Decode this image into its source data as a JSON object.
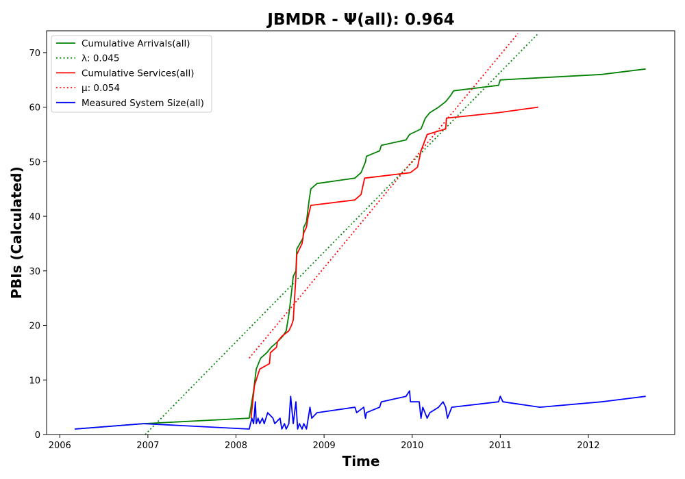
{
  "chart_data": {
    "type": "line",
    "title": "JBMDR -  Ψ(all): 0.964",
    "xlabel": "Time",
    "ylabel": "PBIs (Calculated)",
    "xlim": [
      2005.85,
      2012.98
    ],
    "ylim": [
      0,
      74
    ],
    "x_ticks": [
      2006,
      2007,
      2008,
      2009,
      2010,
      2011,
      2012
    ],
    "y_ticks": [
      0,
      10,
      20,
      30,
      40,
      50,
      60,
      70
    ],
    "x_tick_labels": [
      "2006",
      "2007",
      "2008",
      "2009",
      "2010",
      "2011",
      "2012"
    ],
    "y_tick_labels": [
      "0",
      "10",
      "20",
      "30",
      "40",
      "50",
      "60",
      "70"
    ],
    "grid": false,
    "legend_position": "upper-left",
    "series": [
      {
        "name": "Cumulative Arrivals(all)",
        "color": "#008000",
        "style": "solid",
        "points": [
          [
            2006.17,
            1
          ],
          [
            2006.95,
            2
          ],
          [
            2008.15,
            3
          ],
          [
            2008.2,
            8
          ],
          [
            2008.23,
            12
          ],
          [
            2008.28,
            14
          ],
          [
            2008.35,
            15
          ],
          [
            2008.4,
            16
          ],
          [
            2008.47,
            17
          ],
          [
            2008.53,
            18
          ],
          [
            2008.57,
            19
          ],
          [
            2008.6,
            22
          ],
          [
            2008.63,
            26
          ],
          [
            2008.65,
            29
          ],
          [
            2008.68,
            30
          ],
          [
            2008.69,
            34
          ],
          [
            2008.76,
            36
          ],
          [
            2008.77,
            38
          ],
          [
            2008.8,
            39
          ],
          [
            2008.83,
            43
          ],
          [
            2008.85,
            45
          ],
          [
            2008.92,
            46
          ],
          [
            2009.35,
            47
          ],
          [
            2009.42,
            48
          ],
          [
            2009.47,
            50
          ],
          [
            2009.48,
            51
          ],
          [
            2009.63,
            52
          ],
          [
            2009.65,
            53
          ],
          [
            2009.93,
            54
          ],
          [
            2009.97,
            55
          ],
          [
            2010.1,
            56
          ],
          [
            2010.15,
            58
          ],
          [
            2010.2,
            59
          ],
          [
            2010.3,
            60
          ],
          [
            2010.38,
            61
          ],
          [
            2010.43,
            62
          ],
          [
            2010.47,
            63
          ],
          [
            2010.98,
            64
          ],
          [
            2011.0,
            65
          ],
          [
            2012.15,
            66
          ],
          [
            2012.65,
            67
          ]
        ]
      },
      {
        "name": "λ: 0.045",
        "color": "#008000",
        "style": "dotted",
        "points": [
          [
            2006.97,
            0
          ],
          [
            2011.43,
            73.5
          ]
        ]
      },
      {
        "name": "Cumulative Services(all)",
        "color": "#ff0000",
        "style": "solid",
        "points": [
          [
            2008.17,
            3
          ],
          [
            2008.21,
            9
          ],
          [
            2008.23,
            10
          ],
          [
            2008.27,
            12
          ],
          [
            2008.38,
            13
          ],
          [
            2008.39,
            15
          ],
          [
            2008.46,
            16
          ],
          [
            2008.47,
            17
          ],
          [
            2008.52,
            18
          ],
          [
            2008.6,
            19
          ],
          [
            2008.63,
            20
          ],
          [
            2008.65,
            21
          ],
          [
            2008.68,
            29
          ],
          [
            2008.69,
            33
          ],
          [
            2008.75,
            35
          ],
          [
            2008.77,
            37
          ],
          [
            2008.8,
            38
          ],
          [
            2008.82,
            40
          ],
          [
            2008.85,
            42
          ],
          [
            2009.35,
            43
          ],
          [
            2009.42,
            44
          ],
          [
            2009.46,
            47
          ],
          [
            2009.98,
            48
          ],
          [
            2010.06,
            49
          ],
          [
            2010.1,
            52
          ],
          [
            2010.17,
            55
          ],
          [
            2010.38,
            56
          ],
          [
            2010.39,
            58
          ],
          [
            2010.98,
            59
          ],
          [
            2011.43,
            60
          ]
        ]
      },
      {
        "name": "μ: 0.054",
        "color": "#ff0000",
        "style": "dotted",
        "points": [
          [
            2008.15,
            14
          ],
          [
            2011.2,
            73.5
          ]
        ]
      },
      {
        "name": "Measured System Size(all)",
        "color": "#0000ff",
        "style": "solid",
        "points": [
          [
            2006.17,
            1
          ],
          [
            2006.95,
            2
          ],
          [
            2008.15,
            1
          ],
          [
            2008.18,
            3
          ],
          [
            2008.2,
            2
          ],
          [
            2008.22,
            6
          ],
          [
            2008.23,
            2
          ],
          [
            2008.25,
            3
          ],
          [
            2008.27,
            2
          ],
          [
            2008.3,
            3
          ],
          [
            2008.32,
            2
          ],
          [
            2008.36,
            4
          ],
          [
            2008.42,
            3
          ],
          [
            2008.44,
            2
          ],
          [
            2008.5,
            3
          ],
          [
            2008.52,
            1
          ],
          [
            2008.55,
            2
          ],
          [
            2008.57,
            1
          ],
          [
            2008.6,
            2
          ],
          [
            2008.62,
            7
          ],
          [
            2008.65,
            2
          ],
          [
            2008.68,
            6
          ],
          [
            2008.7,
            1
          ],
          [
            2008.72,
            2
          ],
          [
            2008.75,
            1
          ],
          [
            2008.77,
            2
          ],
          [
            2008.8,
            1
          ],
          [
            2008.82,
            3
          ],
          [
            2008.84,
            5
          ],
          [
            2008.86,
            3
          ],
          [
            2008.92,
            4
          ],
          [
            2009.35,
            5
          ],
          [
            2009.37,
            4
          ],
          [
            2009.45,
            5
          ],
          [
            2009.47,
            3
          ],
          [
            2009.48,
            4
          ],
          [
            2009.63,
            5
          ],
          [
            2009.65,
            6
          ],
          [
            2009.93,
            7
          ],
          [
            2009.97,
            8
          ],
          [
            2009.98,
            6
          ],
          [
            2010.08,
            6
          ],
          [
            2010.1,
            3
          ],
          [
            2010.12,
            5
          ],
          [
            2010.17,
            3
          ],
          [
            2010.2,
            4
          ],
          [
            2010.3,
            5
          ],
          [
            2010.35,
            6
          ],
          [
            2010.38,
            5
          ],
          [
            2010.4,
            3
          ],
          [
            2010.45,
            5
          ],
          [
            2010.98,
            6
          ],
          [
            2011.0,
            7
          ],
          [
            2011.03,
            6
          ],
          [
            2011.45,
            5
          ],
          [
            2012.15,
            6
          ],
          [
            2012.65,
            7
          ]
        ]
      }
    ]
  }
}
